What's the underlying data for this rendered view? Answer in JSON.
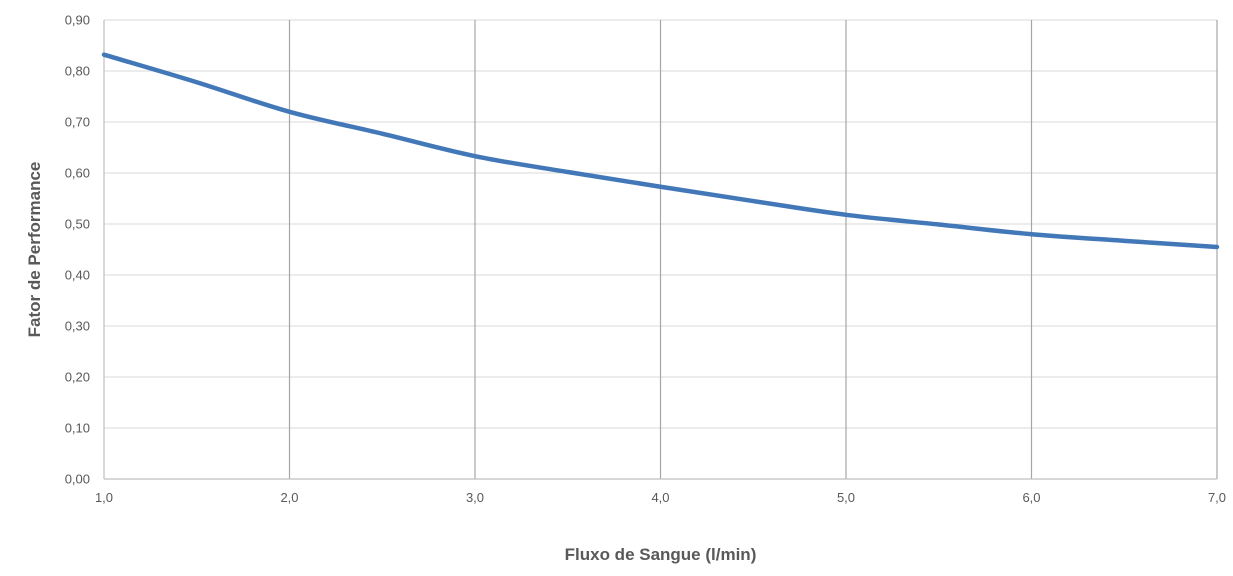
{
  "chart_data": {
    "type": "line",
    "title": "",
    "xlabel": "Fluxo de Sangue (l/min)",
    "ylabel": "Fator de Performance",
    "xlim": [
      1.0,
      7.0
    ],
    "ylim": [
      0.0,
      0.9
    ],
    "x_ticks": [
      "1,0",
      "2,0",
      "3,0",
      "4,0",
      "5,0",
      "6,0",
      "7,0"
    ],
    "y_ticks": [
      "0,00",
      "0,10",
      "0,20",
      "0,30",
      "0,40",
      "0,50",
      "0,60",
      "0,70",
      "0,80",
      "0,90"
    ],
    "grid": {
      "horizontal": true,
      "vertical": true
    },
    "legend": "none",
    "series": [
      {
        "color": "#4378b8",
        "x": [
          1.0,
          1.5,
          2.0,
          2.5,
          3.0,
          3.5,
          4.0,
          4.5,
          5.0,
          5.5,
          6.0,
          6.5,
          7.0
        ],
        "y": [
          0.832,
          0.778,
          0.72,
          0.677,
          0.633,
          0.602,
          0.573,
          0.545,
          0.518,
          0.499,
          0.48,
          0.467,
          0.455
        ]
      }
    ]
  },
  "colors": {
    "line": "#4378b8",
    "grid_horizontal": "#d9d9d9",
    "grid_vertical": "#a6a6a6",
    "axis": "#bfbfbf",
    "text": "#595959"
  }
}
